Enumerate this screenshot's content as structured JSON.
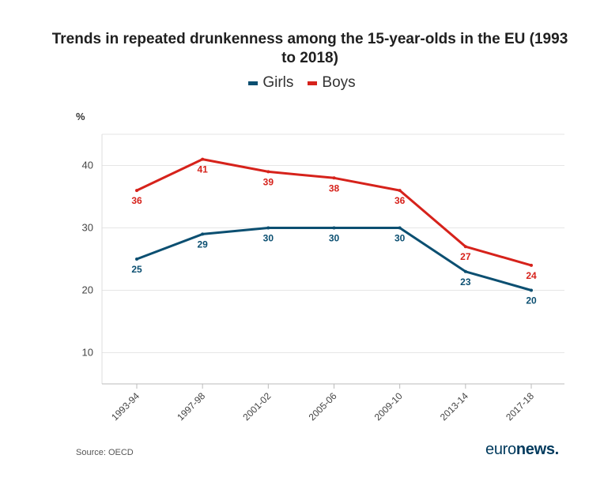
{
  "brand": {
    "logo_part1": "euro",
    "logo_part2": "news."
  },
  "source": "Source: OECD",
  "colors": {
    "girls": "#0b4f71",
    "boys": "#d6221b",
    "grid": "#e6e6e6",
    "axis_text": "#444444"
  },
  "chart_data": {
    "type": "line",
    "title": "Trends in repeated drunkenness among the 15-year-olds in the EU (1993 to 2018)",
    "ylabel": "%",
    "xlabel": "",
    "categories": [
      "1993-94",
      "1997-98",
      "2001-02",
      "2005-06",
      "2009-10",
      "2013-14",
      "2017-18"
    ],
    "y_ticks": [
      "10",
      "20",
      "30",
      "40"
    ],
    "ylim": [
      5,
      45
    ],
    "grid": true,
    "legend_position": "top-center",
    "series": [
      {
        "name": "Girls",
        "values": [
          25,
          29,
          30,
          30,
          30,
          23,
          20
        ],
        "labels": [
          "25",
          "29",
          "30",
          "30",
          "30",
          "23",
          "20"
        ]
      },
      {
        "name": "Boys",
        "values": [
          36,
          41,
          39,
          38,
          36,
          27,
          24
        ],
        "labels": [
          "36",
          "41",
          "39",
          "38",
          "36",
          "27",
          "24"
        ]
      }
    ]
  }
}
